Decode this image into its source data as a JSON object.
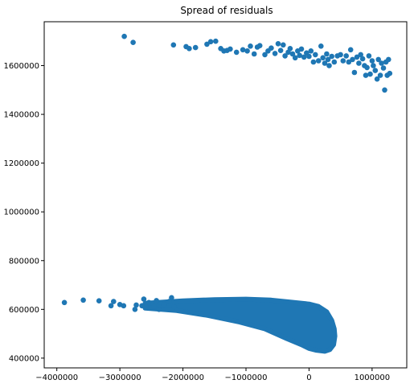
{
  "chart_data": {
    "type": "scatter",
    "title": "Spread of residuals",
    "xlabel": "",
    "ylabel": "",
    "xlim": [
      -4200000,
      1550000
    ],
    "ylim": [
      360000,
      1780000
    ],
    "grid": false,
    "legend": "none",
    "marker_color": "#1f77b4",
    "xticks": [
      {
        "value": -4000000,
        "label": "−4000000"
      },
      {
        "value": -3000000,
        "label": "−3000000"
      },
      {
        "value": -2000000,
        "label": "−2000000"
      },
      {
        "value": -1000000,
        "label": "−1000000"
      },
      {
        "value": 0,
        "label": "0"
      },
      {
        "value": 1000000,
        "label": "1000000"
      }
    ],
    "yticks": [
      {
        "value": 400000,
        "label": "400000"
      },
      {
        "value": 600000,
        "label": "600000"
      },
      {
        "value": 800000,
        "label": "800000"
      },
      {
        "value": 1000000,
        "label": "1000000"
      },
      {
        "value": 1200000,
        "label": "1200000"
      },
      {
        "value": 1400000,
        "label": "1400000"
      },
      {
        "value": 1600000,
        "label": "1600000"
      }
    ],
    "series": [
      {
        "points": [
          [
            -2930000,
            1720000
          ],
          [
            -2790000,
            1695000
          ],
          [
            -2150000,
            1685000
          ],
          [
            -1950000,
            1678000
          ],
          [
            -1900000,
            1670000
          ],
          [
            -1800000,
            1674000
          ],
          [
            -1620000,
            1688000
          ],
          [
            -1560000,
            1698000
          ],
          [
            -1480000,
            1700000
          ],
          [
            -1400000,
            1670000
          ],
          [
            -1350000,
            1660000
          ],
          [
            -1300000,
            1662000
          ],
          [
            -1250000,
            1668000
          ],
          [
            -1150000,
            1655000
          ],
          [
            -1050000,
            1665000
          ],
          [
            -980000,
            1660000
          ],
          [
            -930000,
            1680000
          ],
          [
            -870000,
            1648000
          ],
          [
            -820000,
            1676000
          ],
          [
            -780000,
            1682000
          ],
          [
            -700000,
            1645000
          ],
          [
            -650000,
            1660000
          ],
          [
            -600000,
            1672000
          ],
          [
            -540000,
            1650000
          ],
          [
            -490000,
            1690000
          ],
          [
            -450000,
            1662000
          ],
          [
            -410000,
            1685000
          ],
          [
            -380000,
            1640000
          ],
          [
            -330000,
            1655000
          ],
          [
            -300000,
            1670000
          ],
          [
            -260000,
            1648000
          ],
          [
            -220000,
            1632000
          ],
          [
            -180000,
            1660000
          ],
          [
            -150000,
            1642000
          ],
          [
            -120000,
            1668000
          ],
          [
            -80000,
            1635000
          ],
          [
            -40000,
            1652000
          ],
          [
            0,
            1638000
          ],
          [
            30000,
            1660000
          ],
          [
            70000,
            1615000
          ],
          [
            100000,
            1645000
          ],
          [
            150000,
            1620000
          ],
          [
            190000,
            1680000
          ],
          [
            220000,
            1632000
          ],
          [
            250000,
            1610000
          ],
          [
            280000,
            1648000
          ],
          [
            300000,
            1625000
          ],
          [
            320000,
            1600000
          ],
          [
            360000,
            1638000
          ],
          [
            400000,
            1615000
          ],
          [
            450000,
            1640000
          ],
          [
            500000,
            1645000
          ],
          [
            540000,
            1620000
          ],
          [
            590000,
            1640000
          ],
          [
            630000,
            1615000
          ],
          [
            660000,
            1665000
          ],
          [
            690000,
            1625000
          ],
          [
            720000,
            1572000
          ],
          [
            760000,
            1635000
          ],
          [
            790000,
            1610000
          ],
          [
            820000,
            1645000
          ],
          [
            850000,
            1628000
          ],
          [
            880000,
            1600000
          ],
          [
            900000,
            1560000
          ],
          [
            920000,
            1592000
          ],
          [
            950000,
            1640000
          ],
          [
            970000,
            1565000
          ],
          [
            1000000,
            1620000
          ],
          [
            1020000,
            1600000
          ],
          [
            1050000,
            1580000
          ],
          [
            1080000,
            1545000
          ],
          [
            1100000,
            1625000
          ],
          [
            1130000,
            1560000
          ],
          [
            1150000,
            1610000
          ],
          [
            1180000,
            1590000
          ],
          [
            1200000,
            1500000
          ],
          [
            1220000,
            1615000
          ],
          [
            1240000,
            1560000
          ],
          [
            1260000,
            1625000
          ],
          [
            1280000,
            1568000
          ],
          [
            -3880000,
            628000
          ],
          [
            -3580000,
            638000
          ],
          [
            -3330000,
            635000
          ],
          [
            -3140000,
            615000
          ],
          [
            -3100000,
            632000
          ],
          [
            -3000000,
            620000
          ],
          [
            -2940000,
            615000
          ],
          [
            -2760000,
            600000
          ],
          [
            -2740000,
            618000
          ],
          [
            -2650000,
            615000
          ],
          [
            -2620000,
            642000
          ],
          [
            -2540000,
            628000
          ],
          [
            -2460000,
            612000
          ],
          [
            -2420000,
            636000
          ],
          [
            -2380000,
            600000
          ],
          [
            -2300000,
            620000
          ],
          [
            -2220000,
            632000
          ],
          [
            -2180000,
            648000
          ],
          [
            -2140000,
            610000
          ]
        ]
      }
    ]
  }
}
